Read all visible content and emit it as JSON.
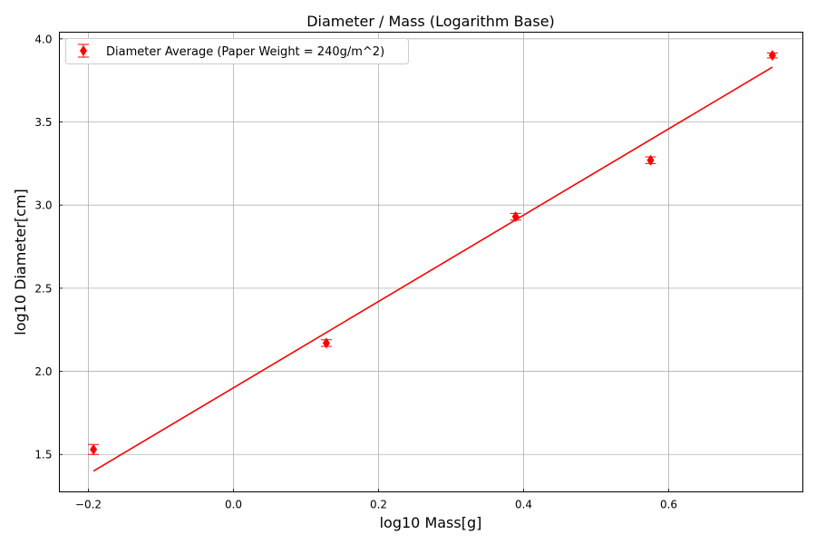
{
  "chart_data": {
    "type": "scatter",
    "title": "Diameter / Mass (Logarithm Base)",
    "xlabel": "log10 Mass[g]",
    "ylabel": "log10 Diameter[cm]",
    "xlim": [
      -0.24,
      0.785
    ],
    "ylim": [
      1.275,
      4.04
    ],
    "x_ticks": [
      -0.2,
      0.0,
      0.2,
      0.4,
      0.6
    ],
    "x_tick_labels": [
      "−0.2",
      "0.0",
      "0.2",
      "0.4",
      "0.6"
    ],
    "y_ticks": [
      1.5,
      2.0,
      2.5,
      3.0,
      3.5,
      4.0
    ],
    "y_tick_labels": [
      "1.5",
      "2.0",
      "2.5",
      "3.0",
      "3.5",
      "4.0"
    ],
    "grid": true,
    "legend_position": "top-left",
    "series": [
      {
        "name": "Diameter Average (Paper Weight = 240g/m^2)",
        "kind": "errorbar",
        "marker": "thin-diamond",
        "color": "#ff0000",
        "x": [
          -0.193,
          0.128,
          0.389,
          0.575,
          0.743
        ],
        "y": [
          1.53,
          2.17,
          2.93,
          3.27,
          3.9
        ],
        "yerr": [
          0.03,
          0.02,
          0.02,
          0.02,
          0.015
        ]
      },
      {
        "name": "",
        "kind": "line",
        "color": "#ff0000",
        "x": [
          -0.193,
          0.743
        ],
        "y": [
          1.4,
          3.83
        ]
      }
    ]
  }
}
